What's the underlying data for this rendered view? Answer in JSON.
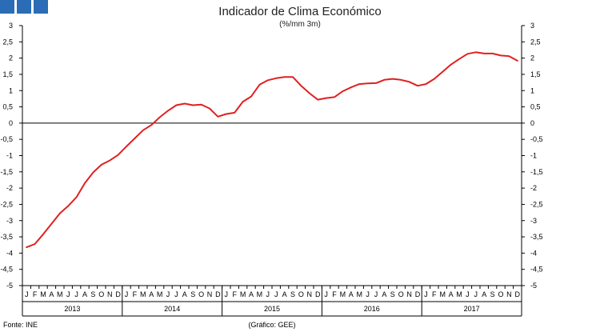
{
  "header": {
    "title": "Indicador de Clima Económico",
    "subtitle": "(%/mm 3m)"
  },
  "footer": {
    "source": "Fonte: INE",
    "credit": "(Gráfico: GEE)"
  },
  "colors": {
    "line": "#e02020",
    "logo": "#2a6cb5",
    "axis": "#000000"
  },
  "chart_data": {
    "type": "line",
    "title": "Indicador de Clima Económico",
    "subtitle": "(%/mm 3m)",
    "ylim": [
      -5,
      3
    ],
    "yticks": [
      "-5",
      "-4,5",
      "-4",
      "-3,5",
      "-3",
      "-2,5",
      "-2",
      "-1,5",
      "-1",
      "-0,5",
      "0",
      "0,5",
      "1",
      "1,5",
      "2",
      "2,5",
      "3"
    ],
    "month_labels": [
      "J",
      "F",
      "M",
      "A",
      "M",
      "J",
      "J",
      "A",
      "S",
      "O",
      "N",
      "D"
    ],
    "years": [
      "2013",
      "2014",
      "2015",
      "2016",
      "2017"
    ],
    "grid": false,
    "series": [
      {
        "values": [
          -3.82,
          -3.72,
          -3.42,
          -3.1,
          -2.78,
          -2.55,
          -2.28,
          -1.85,
          -1.52,
          -1.28,
          -1.15,
          -0.98,
          -0.72,
          -0.47,
          -0.22,
          -0.06,
          0.18,
          0.38,
          0.55,
          0.6,
          0.55,
          0.57,
          0.45,
          0.2,
          0.28,
          0.32,
          0.66,
          0.82,
          1.18,
          1.32,
          1.38,
          1.42,
          1.42,
          1.15,
          0.92,
          0.72,
          0.77,
          0.8,
          0.98,
          1.1,
          1.2,
          1.22,
          1.23,
          1.33,
          1.36,
          1.33,
          1.27,
          1.15,
          1.2,
          1.36,
          1.58,
          1.8,
          1.97,
          2.13,
          2.18,
          2.14,
          2.14,
          2.08,
          2.06,
          1.92
        ]
      }
    ]
  }
}
